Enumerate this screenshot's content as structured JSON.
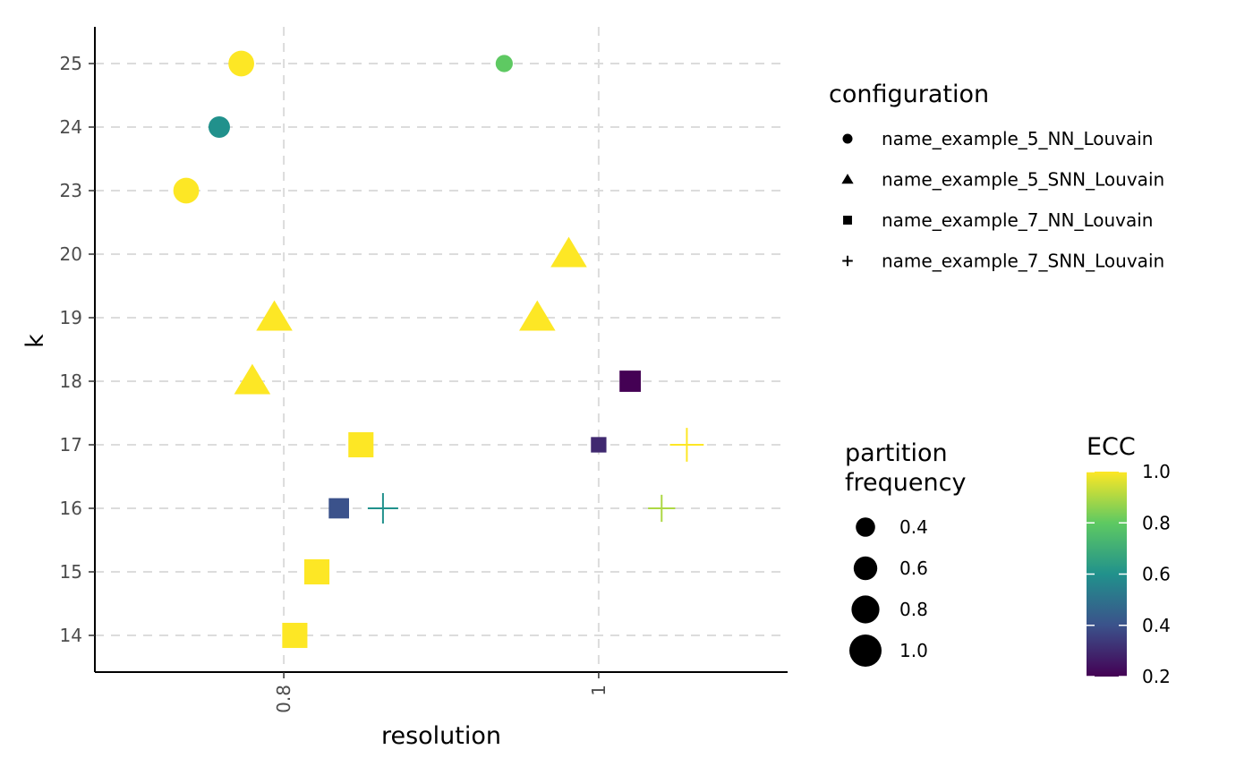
{
  "chart_data": {
    "type": "scatter",
    "xlabel": "resolution",
    "ylabel": "k",
    "x_ticks": [
      0.8,
      1
    ],
    "x_tick_labels": [
      "0.8",
      "1"
    ],
    "y_categories": [
      "14",
      "15",
      "16",
      "17",
      "18",
      "19",
      "20",
      "23",
      "24",
      "25"
    ],
    "xlim": [
      0.68,
      1.12
    ],
    "grid": true,
    "legend_position": "right",
    "shape_legend": {
      "title": "configuration",
      "entries": [
        {
          "name": "name_example_5_NN_Louvain",
          "shape": "circle"
        },
        {
          "name": "name_example_5_SNN_Louvain",
          "shape": "triangle"
        },
        {
          "name": "name_example_7_NN_Louvain",
          "shape": "square"
        },
        {
          "name": "name_example_7_SNN_Louvain",
          "shape": "plus"
        }
      ]
    },
    "size_legend": {
      "title_lines": [
        "partition",
        "frequency"
      ],
      "values": [
        0.4,
        0.6,
        0.8,
        1.0
      ],
      "labels": [
        "0.4",
        "0.6",
        "0.8",
        "1.0"
      ]
    },
    "color_legend": {
      "title": "ECC",
      "min": 0.2,
      "max": 1.0,
      "ticks": [
        1.0,
        0.8,
        0.6,
        0.4,
        0.2
      ],
      "tick_labels": [
        "1.0",
        "0.8",
        "0.6",
        "0.4",
        "0.2"
      ],
      "palette": [
        "#440154",
        "#3b528b",
        "#21918c",
        "#5ec962",
        "#fde725"
      ]
    },
    "points": [
      {
        "config": "name_example_5_NN_Louvain",
        "shape": "circle",
        "x": 0.773,
        "k": "25",
        "frequency": 0.7,
        "ecc": 1.0
      },
      {
        "config": "name_example_5_NN_Louvain",
        "shape": "circle",
        "x": 0.94,
        "k": "25",
        "frequency": 0.3,
        "ecc": 0.8
      },
      {
        "config": "name_example_5_NN_Louvain",
        "shape": "circle",
        "x": 0.759,
        "k": "24",
        "frequency": 0.5,
        "ecc": 0.6
      },
      {
        "config": "name_example_5_NN_Louvain",
        "shape": "circle",
        "x": 0.738,
        "k": "23",
        "frequency": 0.7,
        "ecc": 1.0
      },
      {
        "config": "name_example_5_SNN_Louvain",
        "shape": "triangle",
        "x": 0.981,
        "k": "20",
        "frequency": 0.9,
        "ecc": 1.0
      },
      {
        "config": "name_example_5_SNN_Louvain",
        "shape": "triangle",
        "x": 0.794,
        "k": "19",
        "frequency": 0.9,
        "ecc": 1.0
      },
      {
        "config": "name_example_5_SNN_Louvain",
        "shape": "triangle",
        "x": 0.961,
        "k": "19",
        "frequency": 0.9,
        "ecc": 1.0
      },
      {
        "config": "name_example_5_SNN_Louvain",
        "shape": "triangle",
        "x": 0.78,
        "k": "18",
        "frequency": 0.9,
        "ecc": 1.0
      },
      {
        "config": "name_example_7_NN_Louvain",
        "shape": "square",
        "x": 1.02,
        "k": "18",
        "frequency": 0.6,
        "ecc": 0.2
      },
      {
        "config": "name_example_7_NN_Louvain",
        "shape": "square",
        "x": 0.849,
        "k": "17",
        "frequency": 0.8,
        "ecc": 1.0
      },
      {
        "config": "name_example_7_NN_Louvain",
        "shape": "square",
        "x": 1.0,
        "k": "17",
        "frequency": 0.3,
        "ecc": 0.3
      },
      {
        "config": "name_example_7_NN_Louvain",
        "shape": "square",
        "x": 0.835,
        "k": "16",
        "frequency": 0.55,
        "ecc": 0.4
      },
      {
        "config": "name_example_7_NN_Louvain",
        "shape": "square",
        "x": 0.821,
        "k": "15",
        "frequency": 0.8,
        "ecc": 1.0
      },
      {
        "config": "name_example_7_NN_Louvain",
        "shape": "square",
        "x": 0.807,
        "k": "14",
        "frequency": 0.8,
        "ecc": 1.0
      },
      {
        "config": "name_example_7_SNN_Louvain",
        "shape": "plus",
        "x": 1.056,
        "k": "17",
        "frequency": 1.0,
        "ecc": 1.0
      },
      {
        "config": "name_example_7_SNN_Louvain",
        "shape": "plus",
        "x": 0.863,
        "k": "16",
        "frequency": 0.85,
        "ecc": 0.6
      },
      {
        "config": "name_example_7_SNN_Louvain",
        "shape": "plus",
        "x": 1.04,
        "k": "16",
        "frequency": 0.7,
        "ecc": 0.9
      }
    ]
  }
}
